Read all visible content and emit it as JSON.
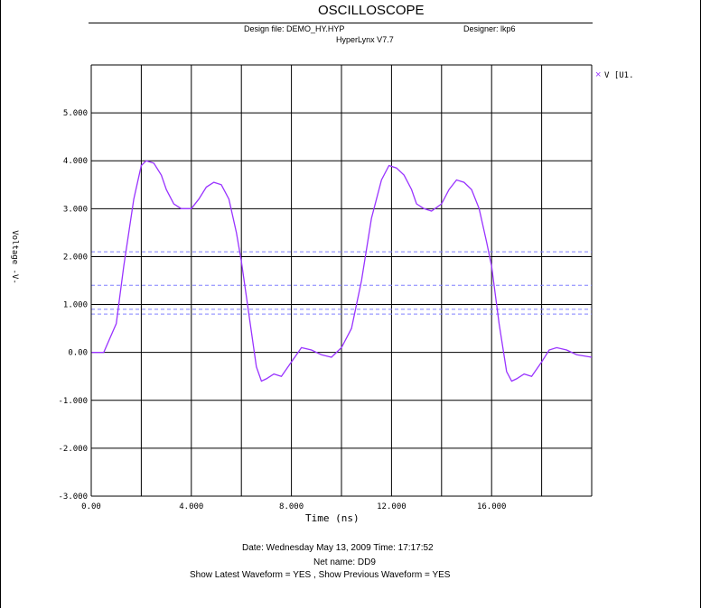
{
  "header": {
    "title": "OSCILLOSCOPE",
    "design_file": "Design file: DEMO_HY.HYP",
    "designer": "Designer: lkp6",
    "version": "HyperLynx V7.7"
  },
  "footer": {
    "date_time": "Date: Wednesday May 13, 2009    Time: 17:17:52",
    "net_name": "Net name: DD9",
    "waveform_flags": "Show Latest Waveform = YES ,  Show Previous Waveform = YES"
  },
  "colors": {
    "waveform": "#9933ff",
    "threshold": "#8080ff",
    "reference": "#000000",
    "grid": "#000000"
  },
  "chart_data": {
    "type": "line",
    "xlabel": "Time (ns)",
    "ylabel": "Voltage -V-",
    "xlim": [
      0,
      20
    ],
    "ylim": [
      -3,
      6
    ],
    "x_ticks": [
      0,
      2,
      4,
      6,
      8,
      10,
      12,
      14,
      16,
      18,
      20
    ],
    "x_tick_labels": [
      "0.00",
      "4.000",
      "8.000",
      "12.000",
      "16.000"
    ],
    "x_tick_label_values": [
      0,
      4,
      8,
      12,
      16
    ],
    "y_ticks": [
      -3,
      -2,
      -1,
      0,
      1,
      2,
      3,
      4,
      5,
      6
    ],
    "y_tick_labels": [
      "-3.000",
      "-2.000",
      "-1.000",
      "0.00",
      "1.000",
      "2.000",
      "3.000",
      "4.000",
      "5.000"
    ],
    "y_tick_label_values": [
      -3,
      -2,
      -1,
      0,
      1,
      2,
      3,
      4,
      5
    ],
    "grid": true,
    "legend": {
      "label": "V [U1.",
      "position": "top-right"
    },
    "reference_lines": [
      {
        "y": 2.0,
        "style": "black-dashed"
      },
      {
        "y": 2.1,
        "style": "blue-dashed"
      },
      {
        "y": 1.4,
        "style": "blue-dashed"
      },
      {
        "y": 0.9,
        "style": "blue-dashed"
      },
      {
        "y": 0.8,
        "style": "blue-dashed"
      }
    ],
    "series": [
      {
        "name": "V [U1.",
        "x": [
          0,
          0.5,
          1.0,
          1.3,
          1.7,
          2.0,
          2.2,
          2.5,
          2.8,
          3.0,
          3.3,
          3.6,
          4.0,
          4.3,
          4.6,
          4.9,
          5.2,
          5.5,
          5.8,
          6.0,
          6.3,
          6.6,
          6.8,
          7.0,
          7.3,
          7.6,
          8.0,
          8.4,
          8.8,
          9.2,
          9.6,
          10.0,
          10.4,
          10.8,
          11.2,
          11.6,
          11.9,
          12.2,
          12.5,
          12.8,
          13.0,
          13.3,
          13.6,
          14.0,
          14.3,
          14.6,
          14.9,
          15.2,
          15.5,
          15.8,
          16.0,
          16.3,
          16.6,
          16.8,
          17.0,
          17.3,
          17.6,
          18.0,
          18.3,
          18.6,
          19.0,
          19.4,
          20.0
        ],
        "y": [
          0,
          0,
          0.6,
          1.8,
          3.2,
          3.9,
          4.0,
          3.95,
          3.7,
          3.4,
          3.1,
          3.0,
          3.0,
          3.2,
          3.45,
          3.55,
          3.5,
          3.2,
          2.5,
          1.9,
          0.8,
          -0.3,
          -0.6,
          -0.55,
          -0.45,
          -0.5,
          -0.2,
          0.1,
          0.05,
          -0.05,
          -0.1,
          0.1,
          0.5,
          1.5,
          2.8,
          3.6,
          3.9,
          3.85,
          3.7,
          3.4,
          3.1,
          3.0,
          2.95,
          3.1,
          3.4,
          3.6,
          3.55,
          3.4,
          3.0,
          2.3,
          1.8,
          0.6,
          -0.4,
          -0.6,
          -0.55,
          -0.45,
          -0.5,
          -0.2,
          0.05,
          0.1,
          0.05,
          -0.05,
          -0.1
        ]
      }
    ]
  }
}
